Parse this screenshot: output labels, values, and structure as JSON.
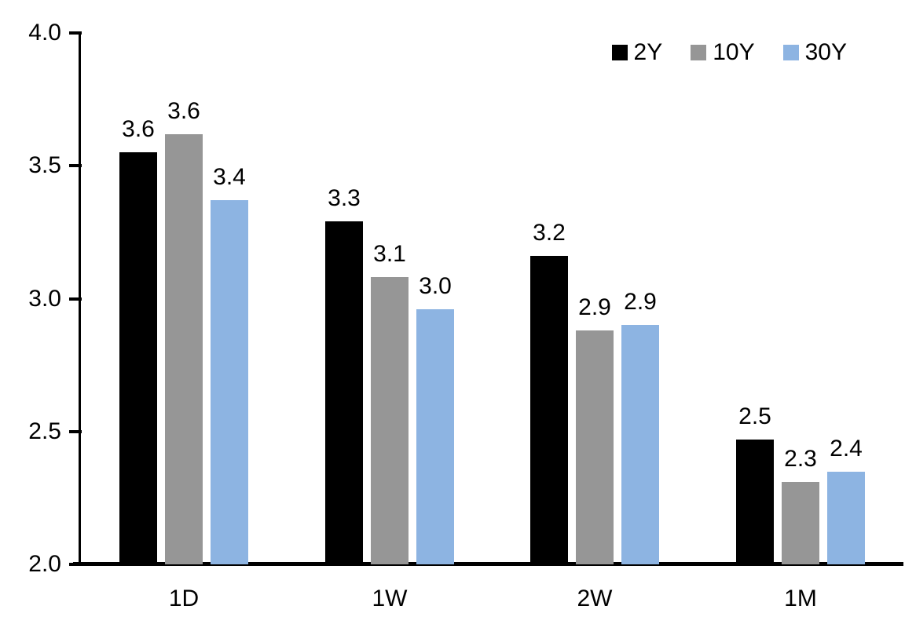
{
  "chart_data": {
    "type": "bar",
    "title": "",
    "xlabel": "",
    "ylabel": "",
    "categories": [
      "1D",
      "1W",
      "2W",
      "1M"
    ],
    "series": [
      {
        "name": "2Y",
        "color": "#000000",
        "values": [
          3.55,
          3.29,
          3.16,
          2.47
        ],
        "data_labels": [
          "3.6",
          "3.3",
          "3.2",
          "2.5"
        ]
      },
      {
        "name": "10Y",
        "color": "#969696",
        "values": [
          3.62,
          3.08,
          2.88,
          2.31
        ],
        "data_labels": [
          "3.6",
          "3.1",
          "2.9",
          "2.3"
        ]
      },
      {
        "name": "30Y",
        "color": "#8DB4E2",
        "values": [
          3.37,
          2.96,
          2.9,
          2.35
        ],
        "data_labels": [
          "3.4",
          "3.0",
          "2.9",
          "2.4"
        ]
      }
    ],
    "ylim": [
      2.0,
      4.0
    ],
    "yticks": [
      "4.0",
      "3.5",
      "3.0",
      "2.5",
      "2.0"
    ],
    "grid": false,
    "legend_position": "top-right",
    "axis_color": "#000000",
    "background_color": "#FFFFFF"
  }
}
